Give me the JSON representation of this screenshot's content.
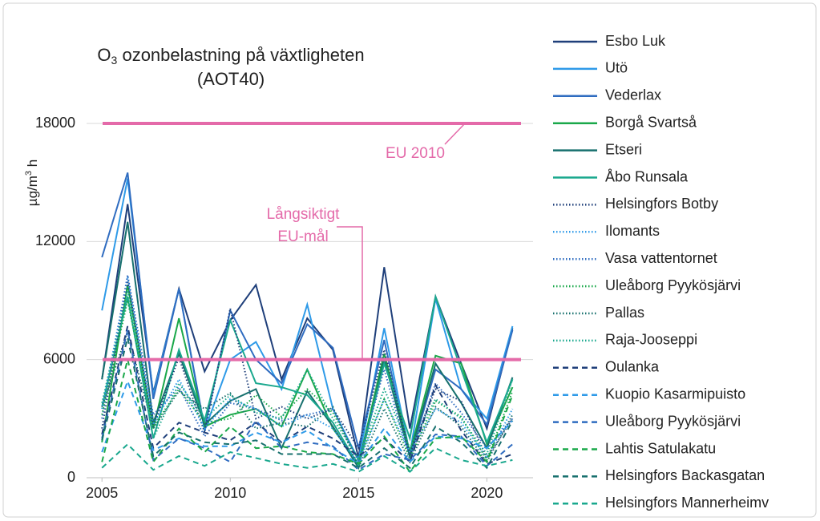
{
  "chart_data": {
    "type": "line",
    "title_main": "O",
    "title_sub": "3",
    "title_rest": " ozonbelastning på växtligheten",
    "title_line2": "(AOT40)",
    "ylabel_main": "µg/m",
    "ylabel_sup": "3",
    "ylabel_rest": " h",
    "x": [
      2005,
      2006,
      2007,
      2008,
      2009,
      2010,
      2011,
      2012,
      2013,
      2014,
      2015,
      2016,
      2017,
      2018,
      2019,
      2020,
      2021
    ],
    "xlim": [
      2004.4,
      2021.8
    ],
    "xticks": [
      2005,
      2010,
      2015,
      2020
    ],
    "ylim": [
      0,
      18000
    ],
    "yticks": [
      0,
      6000,
      12000,
      18000
    ],
    "grid": true,
    "reference_lines": [
      {
        "value": 18000,
        "color": "#e46aa9",
        "label_lines": [
          "EU 2010"
        ]
      },
      {
        "value": 6000,
        "color": "#e46aa9",
        "label_lines": [
          "Långsiktigt",
          "EU-mål"
        ]
      }
    ],
    "legend": "right",
    "series": [
      {
        "name": "Esbo Luk",
        "color": "#1f3f7a",
        "style": "solid",
        "values": [
          5000,
          13900,
          4300,
          9600,
          5400,
          8000,
          9800,
          5000,
          8100,
          6500,
          1000,
          10700,
          2500,
          9200,
          5800,
          2500,
          7600
        ]
      },
      {
        "name": "Utö",
        "color": "#2e9ae8",
        "style": "solid",
        "values": [
          8500,
          15200,
          4200,
          9600,
          2400,
          6000,
          6900,
          4500,
          8800,
          3500,
          900,
          7600,
          1200,
          9100,
          4500,
          3000,
          7700
        ]
      },
      {
        "name": "Vederlax",
        "color": "#2f6cc0",
        "style": "solid",
        "values": [
          11200,
          15500,
          4000,
          9600,
          2500,
          8500,
          6000,
          4800,
          7800,
          6600,
          1500,
          7000,
          1000,
          5500,
          4500,
          2700,
          7500
        ]
      },
      {
        "name": "Borgå Svartså",
        "color": "#1aa84a",
        "style": "solid",
        "values": [
          1800,
          9800,
          2500,
          8100,
          2600,
          3200,
          3500,
          2600,
          5500,
          2500,
          700,
          6300,
          1300,
          6200,
          5800,
          1700,
          4600
        ]
      },
      {
        "name": "Etseri",
        "color": "#17706e",
        "style": "solid",
        "values": [
          5000,
          13000,
          2800,
          6300,
          2700,
          3900,
          4500,
          1500,
          4400,
          2600,
          500,
          6000,
          1100,
          5800,
          3800,
          1500,
          5100
        ]
      },
      {
        "name": "Åbo Runsala",
        "color": "#1aa88e",
        "style": "solid",
        "values": [
          3600,
          9200,
          2000,
          6500,
          2900,
          8000,
          4800,
          4600,
          4200,
          2800,
          600,
          5800,
          2000,
          9200,
          5500,
          1800,
          5000
        ]
      },
      {
        "name": "Helsingfors Botby",
        "color": "#1f3f7a",
        "style": "dotted",
        "values": [
          2500,
          10000,
          2600,
          6100,
          2300,
          8600,
          3000,
          3600,
          3000,
          3500,
          1500,
          6500,
          1200,
          4500,
          3900,
          1000,
          3000
        ]
      },
      {
        "name": "Ilomants",
        "color": "#2e9ae8",
        "style": "dotted",
        "values": [
          3500,
          10200,
          2700,
          5000,
          2500,
          4000,
          3500,
          2600,
          3200,
          2500,
          700,
          4000,
          1300,
          3500,
          2800,
          1000,
          3500
        ]
      },
      {
        "name": "Vasa vattentornet",
        "color": "#2f6cc0",
        "style": "dotted",
        "values": [
          3000,
          10300,
          3200,
          4600,
          2100,
          3800,
          3500,
          2900,
          3200,
          3500,
          800,
          5500,
          900,
          4800,
          3300,
          1500,
          3000
        ]
      },
      {
        "name": "Uleåborg Pyykösjärvi",
        "color": "#1aa84a",
        "style": "dotted",
        "values": [
          3200,
          9000,
          2600,
          4500,
          2800,
          3000,
          4200,
          3100,
          4500,
          3300,
          900,
          4000,
          1000,
          3900,
          3100,
          900,
          4400
        ]
      },
      {
        "name": "Pallas",
        "color": "#17706e",
        "style": "dotted",
        "values": [
          3600,
          7400,
          2500,
          4400,
          3500,
          4300,
          2500,
          2800,
          2600,
          3600,
          500,
          3500,
          800,
          3600,
          2600,
          800,
          3200
        ]
      },
      {
        "name": "Raja-Jooseppi",
        "color": "#1aa88e",
        "style": "dotted",
        "values": [
          3800,
          9500,
          2000,
          4800,
          3000,
          4200,
          3300,
          3000,
          5500,
          3000,
          1000,
          4500,
          1500,
          4000,
          3000,
          1200,
          5000
        ]
      },
      {
        "name": "Oulanka",
        "color": "#1f3f7a",
        "style": "dashed",
        "values": [
          2200,
          7700,
          1500,
          2800,
          2300,
          1900,
          2800,
          1800,
          2600,
          2000,
          1100,
          2000,
          800,
          4700,
          2400,
          700,
          1200
        ]
      },
      {
        "name": "Kuopio Kasarmipuisto",
        "color": "#2e9ae8",
        "style": "dashed",
        "values": [
          1300,
          4900,
          1400,
          2000,
          1600,
          1600,
          2300,
          1800,
          2400,
          1500,
          700,
          2500,
          800,
          2100,
          2000,
          1500,
          2900
        ]
      },
      {
        "name": "Uleåborg Pyykösjärvi",
        "color": "#2f6cc0",
        "style": "dashed",
        "values": [
          2000,
          7500,
          900,
          2000,
          1500,
          800,
          2900,
          1500,
          1800,
          1600,
          400,
          1200,
          900,
          2200,
          2100,
          600,
          1700
        ]
      },
      {
        "name": "Lahtis Satulakatu",
        "color": "#1aa84a",
        "style": "dashed",
        "values": [
          800,
          6000,
          800,
          2500,
          1300,
          2600,
          1500,
          1600,
          1300,
          1200,
          700,
          2100,
          300,
          2000,
          2100,
          800,
          4200
        ]
      },
      {
        "name": "Helsingfors Backasgatan",
        "color": "#17706e",
        "style": "dashed",
        "values": [
          1900,
          7100,
          1100,
          2300,
          1800,
          1700,
          1900,
          1200,
          1200,
          1200,
          500,
          1500,
          500,
          2600,
          1800,
          500,
          2900
        ]
      },
      {
        "name": "Helsingfors Mannerheimv",
        "color": "#1aa88e",
        "style": "dashed",
        "values": [
          500,
          1700,
          400,
          1100,
          600,
          1300,
          1000,
          700,
          500,
          700,
          300,
          1100,
          300,
          1500,
          900,
          600,
          900
        ]
      }
    ]
  }
}
